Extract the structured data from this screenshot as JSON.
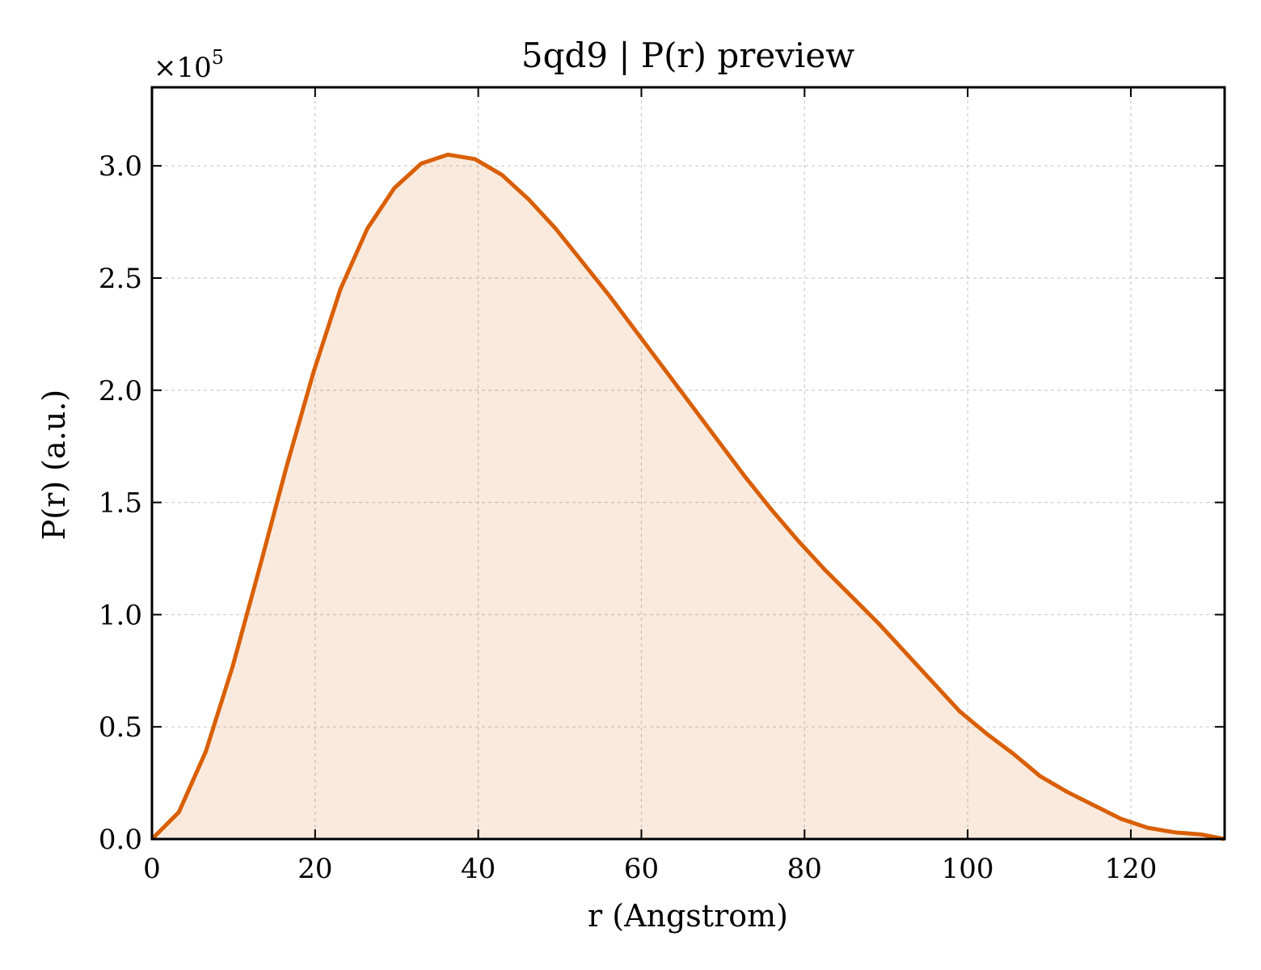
{
  "chart_data": {
    "type": "area",
    "title": "5qd9 | P(r) preview",
    "xlabel": "r (Angstrom)",
    "ylabel": "P(r) (a.u.)",
    "y_scale_label": "×10",
    "y_scale_exponent": "5",
    "xlim": [
      0,
      131.5
    ],
    "ylim": [
      0,
      3.35
    ],
    "y_multiplier": 100000,
    "xticks": [
      0,
      20,
      40,
      60,
      80,
      100,
      120
    ],
    "xtick_labels": [
      "0",
      "20",
      "40",
      "60",
      "80",
      "100",
      "120"
    ],
    "yticks": [
      0,
      0.5,
      1.0,
      1.5,
      2.0,
      2.5,
      3.0
    ],
    "ytick_labels": [
      "0.0",
      "0.5",
      "1.0",
      "1.5",
      "2.0",
      "2.5",
      "3.0"
    ],
    "grid": true,
    "legend": "none",
    "series": [
      {
        "color": "#d95f02",
        "fill_color": "#d95f02",
        "x": [
          0,
          3.3,
          6.6,
          9.9,
          13.2,
          16.5,
          19.8,
          23.1,
          26.4,
          29.7,
          33.0,
          36.3,
          39.6,
          42.9,
          46.2,
          49.5,
          52.8,
          56.1,
          59.4,
          62.7,
          66.0,
          69.3,
          72.6,
          75.9,
          79.2,
          82.5,
          85.8,
          89.1,
          92.4,
          95.7,
          99.0,
          102.3,
          105.6,
          108.9,
          112.2,
          115.5,
          118.8,
          122.1,
          125.4,
          128.7,
          131.5
        ],
        "y": [
          0.0,
          0.12,
          0.39,
          0.77,
          1.21,
          1.66,
          2.08,
          2.45,
          2.72,
          2.9,
          3.01,
          3.05,
          3.03,
          2.96,
          2.85,
          2.72,
          2.57,
          2.42,
          2.26,
          2.1,
          1.94,
          1.78,
          1.62,
          1.47,
          1.33,
          1.2,
          1.08,
          0.96,
          0.83,
          0.7,
          0.57,
          0.47,
          0.38,
          0.28,
          0.21,
          0.15,
          0.09,
          0.05,
          0.03,
          0.02,
          0.0
        ]
      }
    ]
  }
}
